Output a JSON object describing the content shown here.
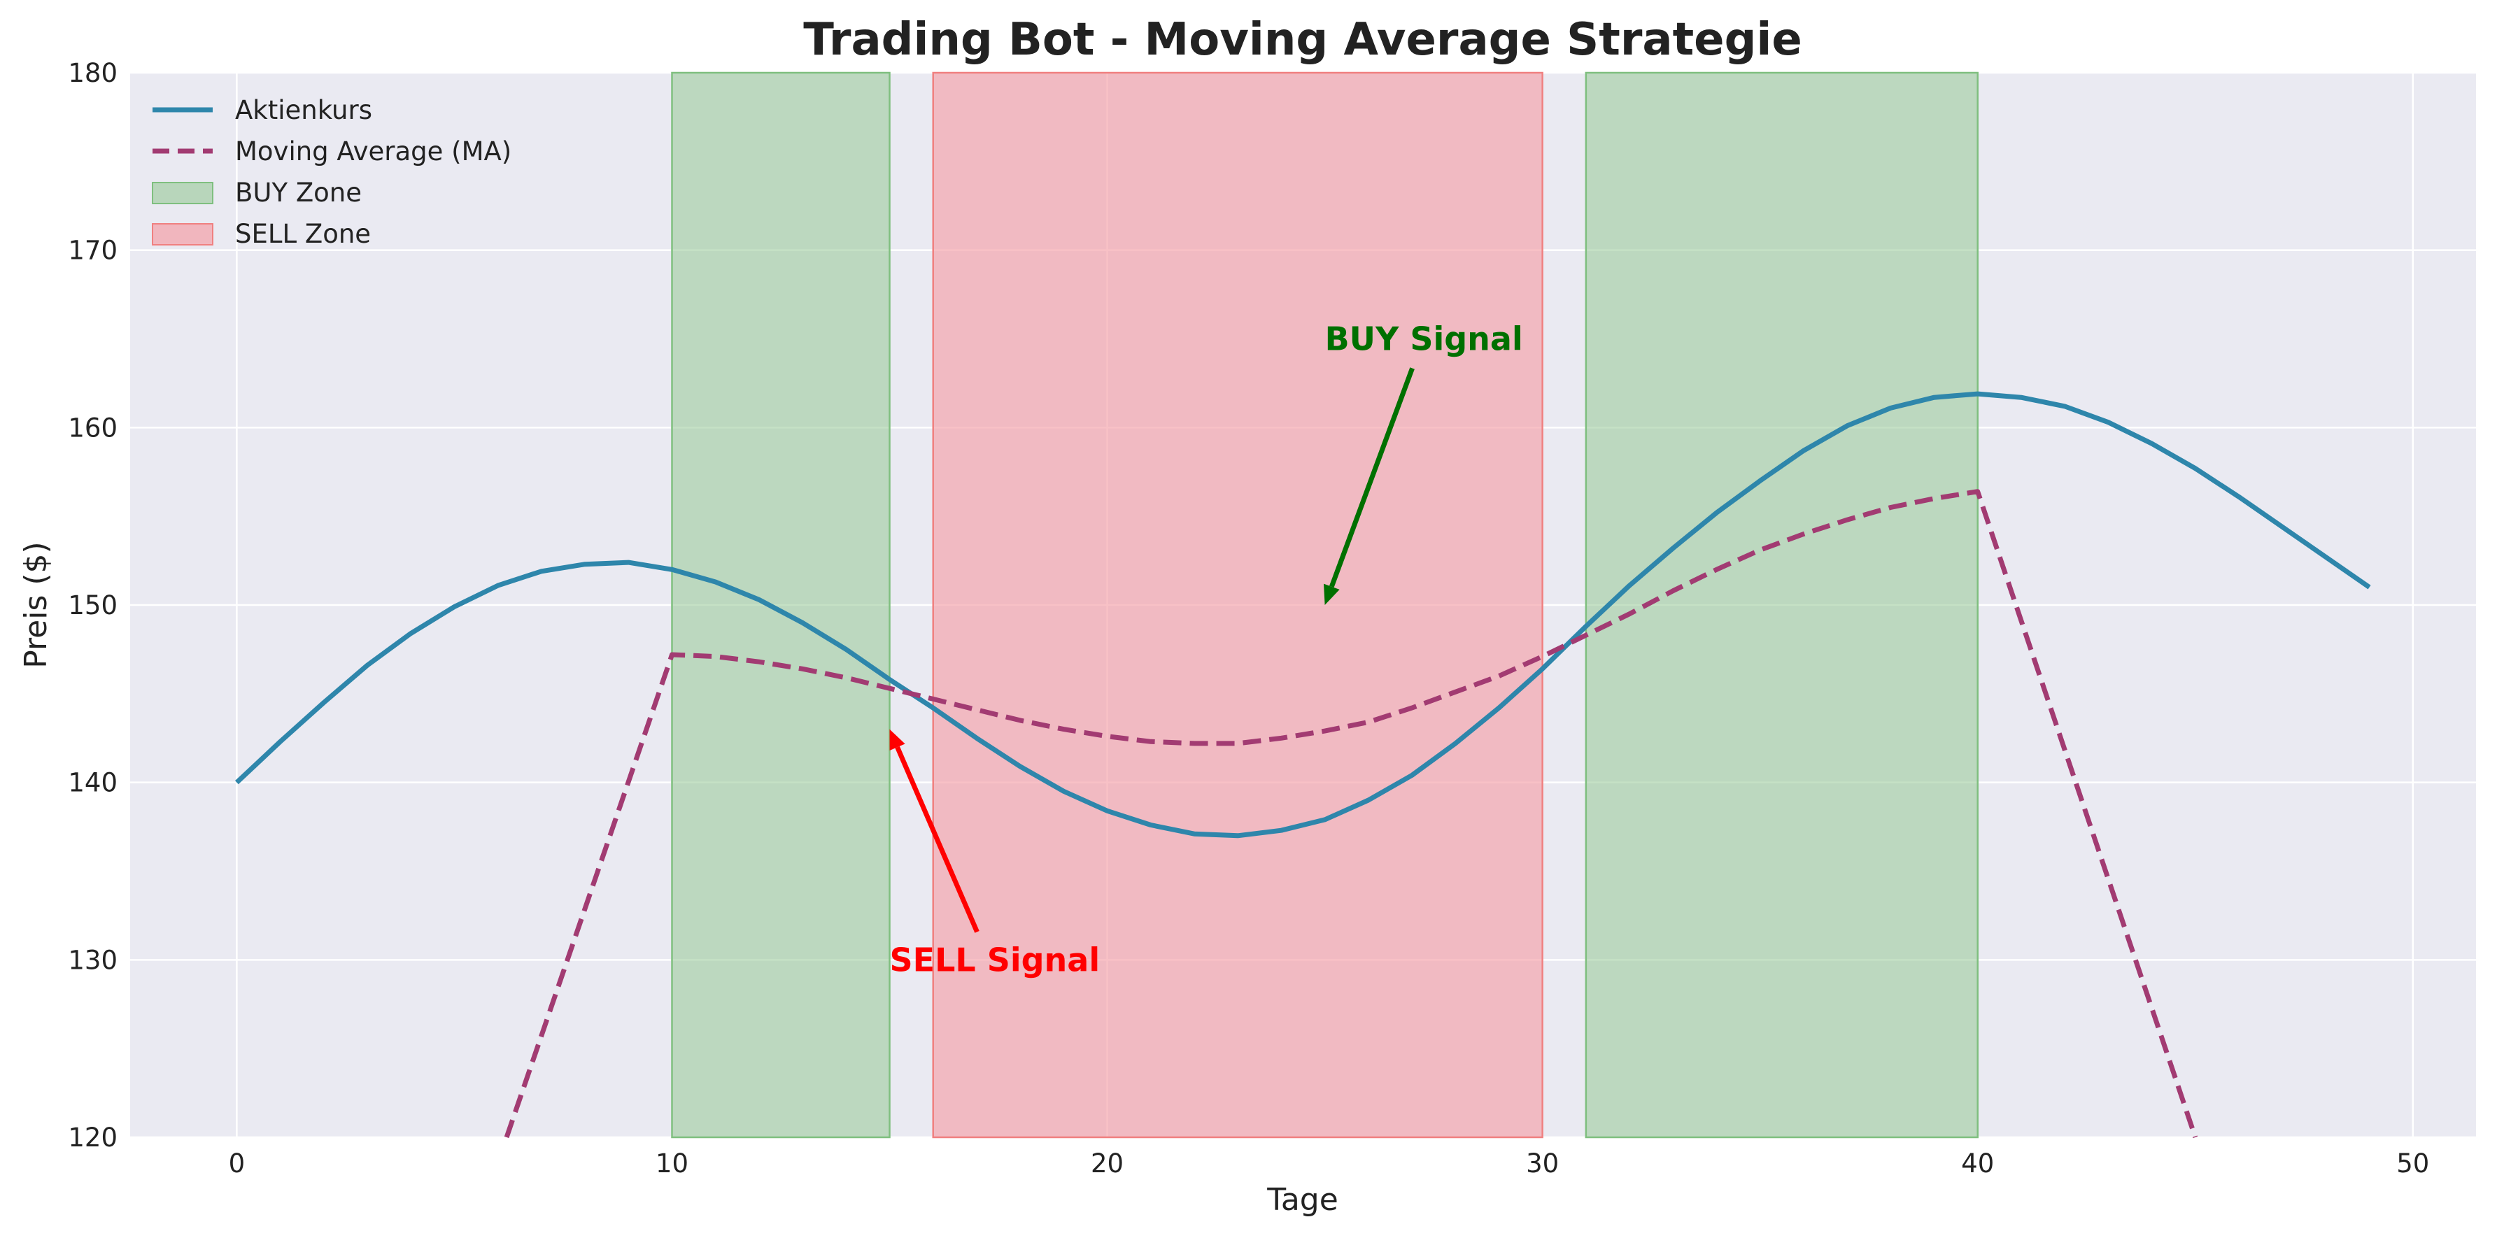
{
  "chart_data": {
    "type": "line",
    "title": "Trading Bot - Moving Average Strategie",
    "xlabel": "Tage",
    "ylabel": "Preis ($)",
    "xlim": [
      -2.45,
      51.45
    ],
    "ylim": [
      120,
      180
    ],
    "xticks": [
      0,
      10,
      20,
      30,
      40,
      50
    ],
    "yticks": [
      120,
      130,
      140,
      150,
      160,
      170,
      180
    ],
    "grid": true,
    "legend_position": "top-left",
    "colors": {
      "background": "#eaeaf2",
      "price": "#2e86ab",
      "ma": "#a23b72",
      "buy_fill": "#96c896",
      "buy_edge": "#7fbf7f",
      "sell_fill": "#f4a0a8",
      "sell_edge": "#f08080",
      "buy_annot": "#007000",
      "sell_annot": "#ff0000"
    },
    "series": [
      {
        "name": "Aktienkurs",
        "style": "solid",
        "x": [
          0,
          1,
          2,
          3,
          4,
          5,
          6,
          7,
          8,
          9,
          10,
          11,
          12,
          13,
          14,
          15,
          16,
          17,
          18,
          19,
          20,
          21,
          22,
          23,
          24,
          25,
          26,
          27,
          28,
          29,
          30,
          31,
          32,
          33,
          34,
          35,
          36,
          37,
          38,
          39,
          40,
          41,
          42,
          43,
          44,
          45,
          46,
          47,
          48,
          49
        ],
        "values": [
          140.0,
          142.3,
          144.5,
          146.6,
          148.4,
          149.9,
          151.1,
          151.9,
          152.3,
          152.4,
          152.0,
          151.3,
          150.3,
          149.0,
          147.5,
          145.8,
          144.2,
          142.5,
          140.9,
          139.5,
          138.4,
          137.6,
          137.1,
          137.0,
          137.3,
          137.9,
          139.0,
          140.4,
          142.2,
          144.2,
          146.4,
          148.8,
          151.1,
          153.2,
          155.2,
          157.0,
          158.7,
          160.1,
          161.1,
          161.7,
          161.9,
          161.7,
          161.2,
          160.3,
          159.1,
          157.7,
          156.1,
          154.4,
          152.7,
          151.0
        ]
      },
      {
        "name": "Moving Average (MA)",
        "style": "dashed",
        "x": [
          6.2,
          10,
          11,
          12,
          13,
          14,
          15,
          16,
          17,
          18,
          19,
          20,
          21,
          22,
          23,
          24,
          25,
          26,
          27,
          28,
          29,
          30,
          31,
          32,
          33,
          34,
          35,
          36,
          37,
          38,
          39,
          40,
          45
        ],
        "values": [
          120,
          147.2,
          147.1,
          146.8,
          146.4,
          145.9,
          145.3,
          144.7,
          144.1,
          143.5,
          143.0,
          142.6,
          142.3,
          142.2,
          142.2,
          142.5,
          142.9,
          143.4,
          144.2,
          145.1,
          146.0,
          147.1,
          148.3,
          149.5,
          150.8,
          152.0,
          153.1,
          154.0,
          154.8,
          155.5,
          156.0,
          156.4,
          120
        ]
      }
    ],
    "zones": [
      {
        "name": "BUY Zone",
        "start": 10,
        "end": 15,
        "kind": "buy"
      },
      {
        "name": "SELL Zone",
        "start": 16,
        "end": 30,
        "kind": "sell"
      },
      {
        "name": "BUY Zone",
        "start": 31,
        "end": 40,
        "kind": "buy"
      }
    ],
    "annotations": [
      {
        "text": "BUY Signal",
        "kind": "buy",
        "xy": [
          25,
          150
        ],
        "xytext": [
          25,
          165
        ]
      },
      {
        "text": "SELL Signal",
        "kind": "sell",
        "xy": [
          15,
          143
        ],
        "xytext": [
          15,
          130
        ]
      }
    ],
    "legend": [
      {
        "label": "Aktienkurs",
        "kind": "line-solid"
      },
      {
        "label": "Moving Average (MA)",
        "kind": "line-dashed"
      },
      {
        "label": "BUY Zone",
        "kind": "patch-buy"
      },
      {
        "label": "SELL Zone",
        "kind": "patch-sell"
      }
    ]
  }
}
